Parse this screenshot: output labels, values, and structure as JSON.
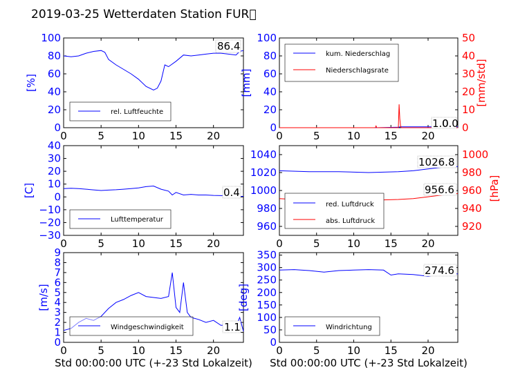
{
  "title": "2019-03-25 Wetterdaten Station FUR\u0000",
  "colors": {
    "blue": "#0000ff",
    "red": "#ff0000",
    "black": "#000000"
  },
  "panels": {
    "humidity": {
      "ylabel": "[%]",
      "ylim": [
        0,
        100
      ],
      "yticks": [
        "0",
        "20",
        "40",
        "60",
        "80",
        "100"
      ],
      "xticks": [
        "0",
        "5",
        "10",
        "15",
        "20"
      ],
      "legend": [
        "rel. Luftfeuchte"
      ],
      "last_value": "86.4"
    },
    "precip": {
      "ylabel": "[mm]",
      "ylabel_right": "[mm/std]",
      "ylim": [
        0,
        100
      ],
      "yticks": [
        "0",
        "20",
        "40",
        "60",
        "80",
        "100"
      ],
      "ylim_right": [
        0,
        50
      ],
      "yticks_right": [
        "0",
        "10",
        "20",
        "30",
        "40",
        "50"
      ],
      "xticks": [
        "0",
        "5",
        "10",
        "15",
        "20"
      ],
      "legend": [
        "kum. Niederschlag",
        "Niederschlagsrate"
      ],
      "last_value_a": "1.0",
      "last_value_b": "0.0"
    },
    "temperature": {
      "ylabel": "[C]",
      "ylim": [
        -30,
        40
      ],
      "yticks": [
        "−30",
        "−20",
        "−10",
        "0",
        "10",
        "20",
        "30",
        "40"
      ],
      "xticks": [
        "0",
        "5",
        "10",
        "15",
        "20"
      ],
      "legend": [
        "Lufttemperatur"
      ],
      "last_value": "0.4"
    },
    "pressure": {
      "ylabel_right": "[hPa]",
      "ylim": [
        950,
        1050
      ],
      "yticks": [
        "960",
        "980",
        "1000",
        "1020",
        "1040"
      ],
      "ylim_right": [
        910,
        1010
      ],
      "yticks_right": [
        "920",
        "940",
        "960",
        "980",
        "1000"
      ],
      "xticks": [
        "0",
        "5",
        "10",
        "15",
        "20"
      ],
      "legend": [
        "red. Luftdruck",
        "abs. Luftdruck"
      ],
      "last_value_a": "1026.8",
      "last_value_b": "956.6"
    },
    "wind": {
      "ylabel": "[m/s]",
      "ylim": [
        0,
        9
      ],
      "yticks": [
        "0",
        "1",
        "2",
        "3",
        "4",
        "5",
        "6",
        "7",
        "8",
        "9"
      ],
      "xticks": [
        "0",
        "5",
        "10",
        "15",
        "20"
      ],
      "legend": [
        "Windgeschwindigkeit"
      ],
      "last_value": "1.1",
      "xlabel": "Std 00:00:00 UTC (+-23 Std Lokalzeit)"
    },
    "direction": {
      "ylabel": "[deg]",
      "ylim": [
        0,
        360
      ],
      "yticks": [
        "0",
        "50",
        "100",
        "150",
        "200",
        "250",
        "300",
        "350"
      ],
      "xticks": [
        "0",
        "5",
        "10",
        "15",
        "20"
      ],
      "legend": [
        "Windrichtung"
      ],
      "last_value": "274.6",
      "xlabel": "Std 00:00:00 UTC (+-23 Std Lokalzeit)"
    }
  },
  "chart_data": [
    {
      "type": "line",
      "ylabel": "[%]",
      "ylim": [
        0,
        100
      ],
      "xlim": [
        0,
        24
      ],
      "series": [
        {
          "name": "rel. Luftfeuchte",
          "color": "#0000ff",
          "x": [
            0,
            1,
            2,
            3,
            4,
            5,
            5.5,
            6,
            7,
            8,
            9,
            10,
            11,
            12,
            12.5,
            13,
            13.5,
            14,
            15,
            16,
            17,
            18,
            19,
            20,
            21,
            22,
            23,
            23.5,
            24
          ],
          "y": [
            80,
            79,
            80,
            83,
            85,
            86,
            84,
            76,
            70,
            65,
            60,
            54,
            46,
            42,
            44,
            52,
            70,
            68,
            74,
            81,
            80,
            81,
            82,
            83,
            83,
            82,
            81,
            85,
            86
          ]
        }
      ]
    },
    {
      "type": "line",
      "ylabel": "[mm]",
      "ylim": [
        0,
        100
      ],
      "ylim_right": [
        0,
        50
      ],
      "xlim": [
        0,
        24
      ],
      "series": [
        {
          "name": "kum. Niederschlag",
          "color": "#0000ff",
          "x": [
            0,
            13,
            16,
            16.3,
            24
          ],
          "y": [
            0,
            0,
            0.5,
            1.0,
            1.0
          ]
        },
        {
          "name": "Niederschlagsrate",
          "axis": "right",
          "color": "#ff0000",
          "x": [
            0,
            12.9,
            13,
            13.1,
            16,
            16.1,
            16.2,
            16.3,
            16.4,
            24
          ],
          "y": [
            0,
            0,
            1,
            0,
            0,
            13,
            5,
            1,
            0,
            0
          ]
        }
      ]
    },
    {
      "type": "line",
      "ylabel": "[C]",
      "ylim": [
        -30,
        40
      ],
      "xlim": [
        0,
        24
      ],
      "series": [
        {
          "name": "Lufttemperatur",
          "color": "#0000ff",
          "x": [
            0,
            1,
            2,
            3,
            4,
            5,
            6,
            7,
            8,
            9,
            10,
            11,
            12,
            13,
            14,
            14.5,
            15,
            16,
            17,
            18,
            19,
            20,
            21,
            22,
            23,
            24
          ],
          "y": [
            6.5,
            6.8,
            6.5,
            6,
            5.5,
            5,
            5.3,
            5.6,
            6,
            6.5,
            7,
            8,
            8.5,
            6,
            4.5,
            1.5,
            3.5,
            1.5,
            2,
            1.5,
            1.5,
            1.2,
            1,
            0.8,
            0.5,
            0.4
          ]
        }
      ]
    },
    {
      "type": "line",
      "ylabel_right": "[hPa]",
      "ylim": [
        950,
        1050
      ],
      "ylim_right": [
        910,
        1010
      ],
      "xlim": [
        0,
        24
      ],
      "series": [
        {
          "name": "red. Luftdruck",
          "color": "#0000ff",
          "x": [
            0,
            4,
            8,
            12,
            16,
            18,
            20,
            22,
            24
          ],
          "y": [
            1022,
            1021,
            1021,
            1020,
            1021,
            1022,
            1024,
            1026,
            1026.8
          ]
        },
        {
          "name": "abs. Luftdruck",
          "axis": "right",
          "color": "#ff0000",
          "x": [
            0,
            4,
            8,
            12,
            16,
            18,
            20,
            22,
            24
          ],
          "y": [
            951,
            949,
            949,
            949,
            950,
            951,
            953,
            955,
            956.6
          ]
        }
      ]
    },
    {
      "type": "line",
      "ylabel": "[m/s]",
      "ylim": [
        0,
        9
      ],
      "xlim": [
        0,
        24
      ],
      "series": [
        {
          "name": "Windgeschwindigkeit",
          "color": "#0000ff",
          "x": [
            0,
            1,
            2,
            3,
            4,
            5,
            6,
            7,
            8,
            9,
            10,
            11,
            12,
            13,
            14,
            14.5,
            15,
            15.5,
            16,
            16.5,
            17,
            18,
            19,
            20,
            21,
            22,
            23,
            23.5,
            24
          ],
          "y": [
            1.2,
            1.4,
            2.0,
            2.4,
            2.2,
            2.6,
            3.4,
            4.0,
            4.3,
            4.7,
            5.0,
            4.6,
            4.5,
            4.4,
            4.6,
            7.0,
            3.5,
            3.0,
            6.0,
            3.0,
            2.5,
            2.3,
            2.0,
            2.2,
            1.7,
            1.8,
            1.6,
            2.5,
            1.1
          ]
        }
      ]
    },
    {
      "type": "line",
      "ylabel": "[deg]",
      "ylim": [
        0,
        360
      ],
      "xlim": [
        0,
        24
      ],
      "series": [
        {
          "name": "Windrichtung",
          "color": "#0000ff",
          "x": [
            0,
            2,
            4,
            6,
            8,
            10,
            12,
            14,
            15,
            16,
            18,
            20,
            22,
            24
          ],
          "y": [
            290,
            292,
            288,
            282,
            288,
            290,
            292,
            290,
            270,
            275,
            272,
            265,
            275,
            274.6
          ]
        }
      ]
    }
  ]
}
